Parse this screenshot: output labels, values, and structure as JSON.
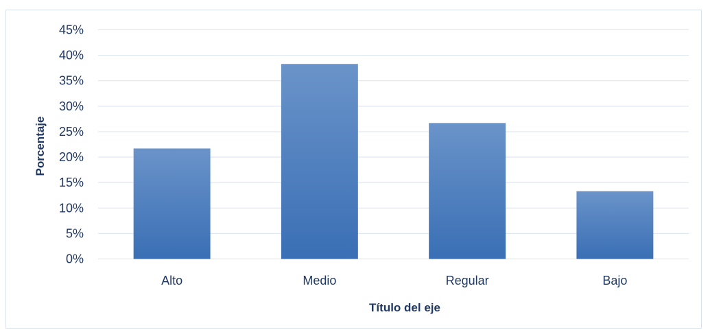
{
  "chart_data": {
    "type": "bar",
    "categories": [
      "Alto",
      "Medio",
      "Regular",
      "Bajo"
    ],
    "values": [
      21.7,
      38.3,
      26.7,
      13.3
    ],
    "value_unit": "%",
    "title": "",
    "xlabel": "Título del eje",
    "ylabel": "Porcentaje",
    "ylim": [
      0,
      45
    ],
    "ytick_step": 5,
    "yticks": [
      "0%",
      "5%",
      "10%",
      "15%",
      "20%",
      "25%",
      "30%",
      "35%",
      "40%",
      "45%"
    ],
    "grid": true,
    "legend": "none",
    "bar_color_top": "#6a93c9",
    "bar_color_bottom": "#3a6fb5",
    "grid_color": "#d9e2ef",
    "text_color": "#1f3864"
  }
}
